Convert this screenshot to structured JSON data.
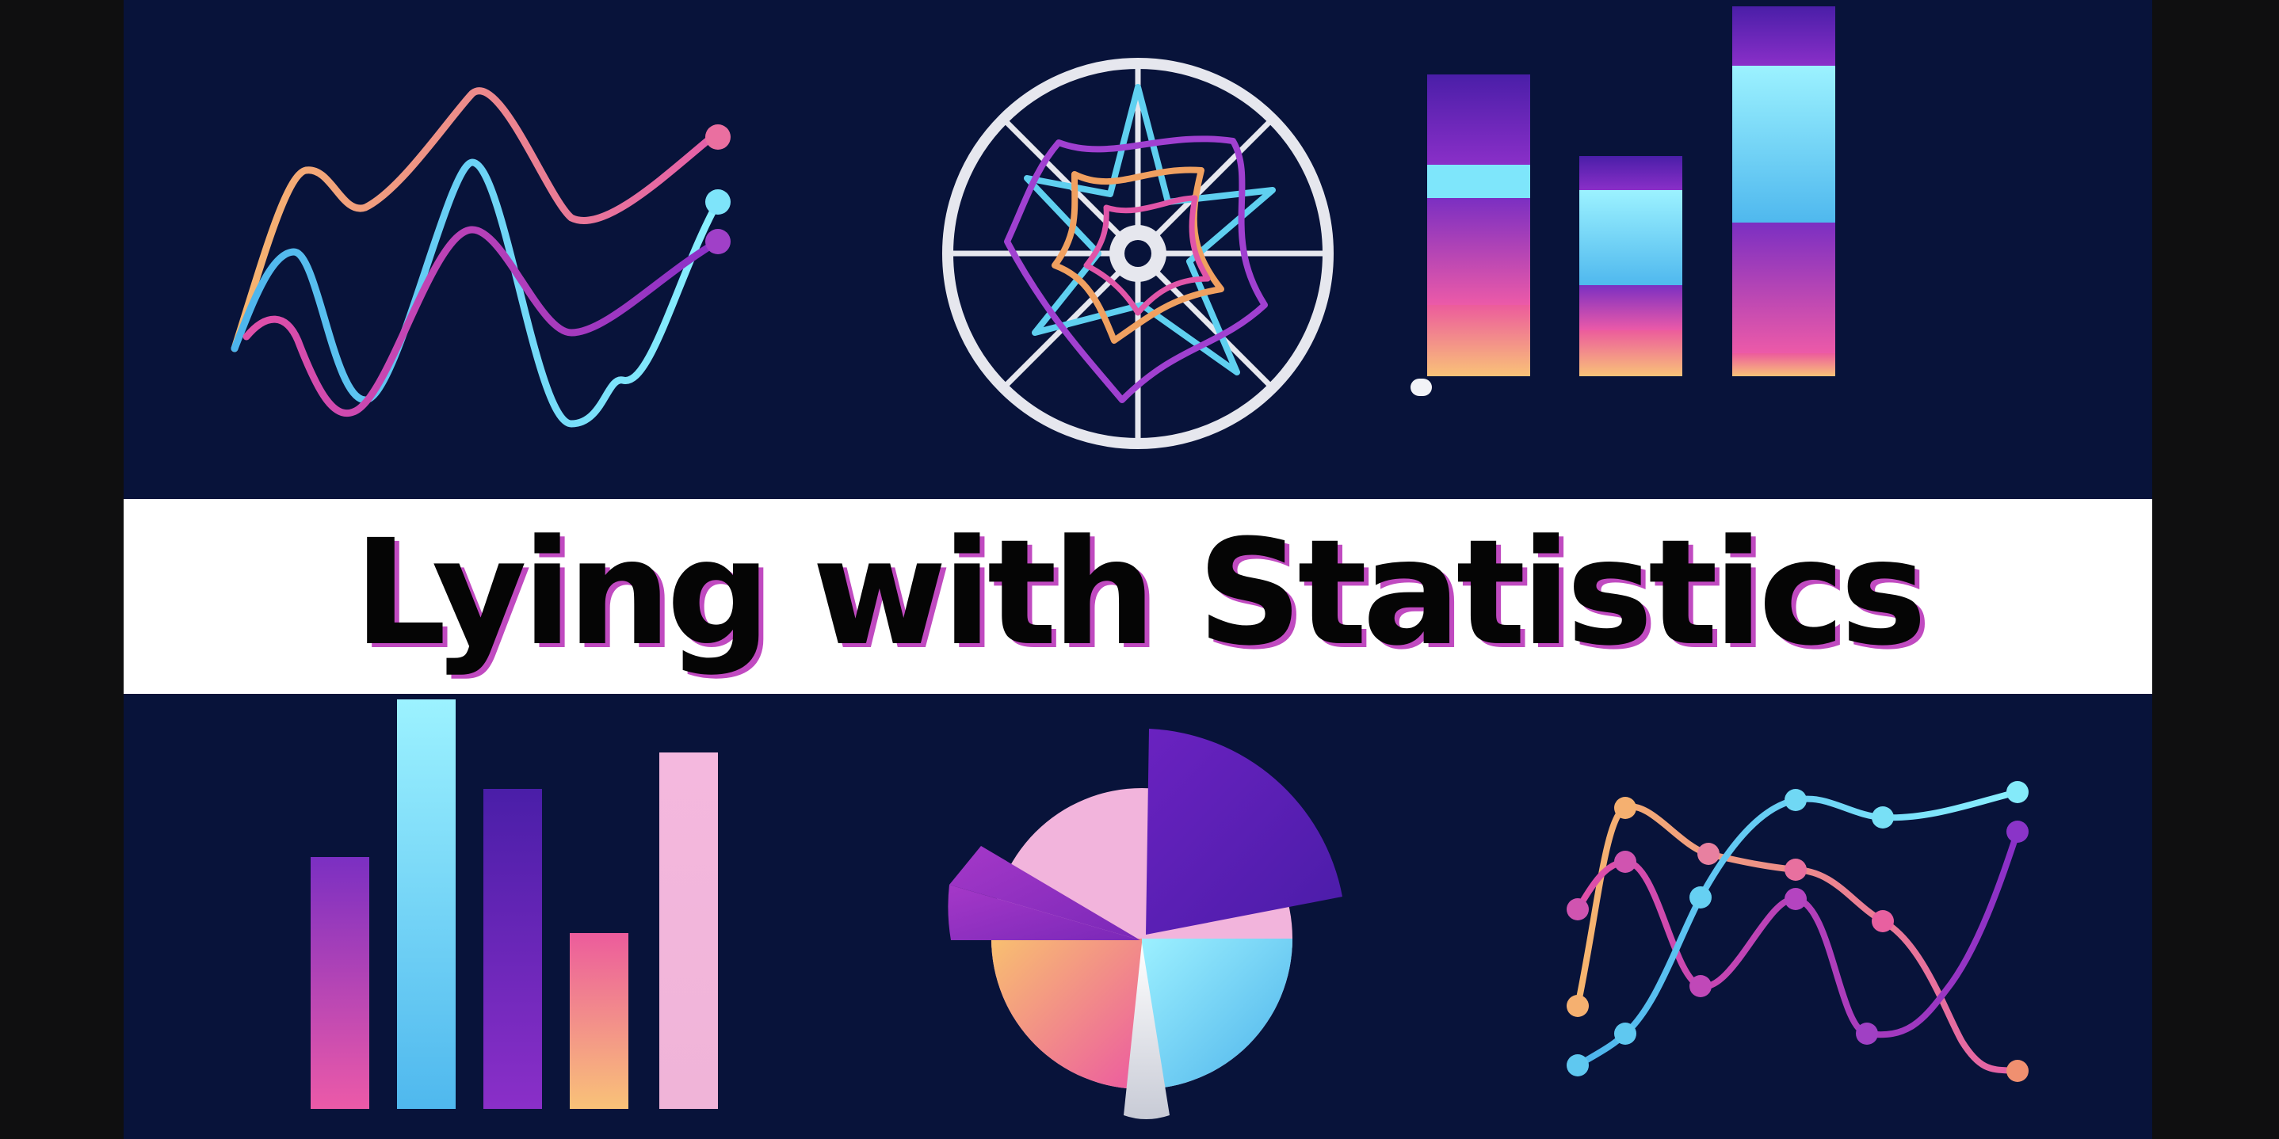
{
  "title": "Lying with Statistics",
  "palette": {
    "background": "#08133a",
    "band": "#ffffff",
    "orange": "#f5b070",
    "pink": "#e0559f",
    "cyan": "#5fd0f0",
    "purple": "#7a2bc0",
    "light": "#e6e7ee"
  },
  "icons": [
    "line-chart-icon",
    "radar-chart-icon",
    "stacked-bar-chart-icon",
    "bar-chart-icon",
    "pie-chart-icon",
    "curve-chart-icon"
  ]
}
